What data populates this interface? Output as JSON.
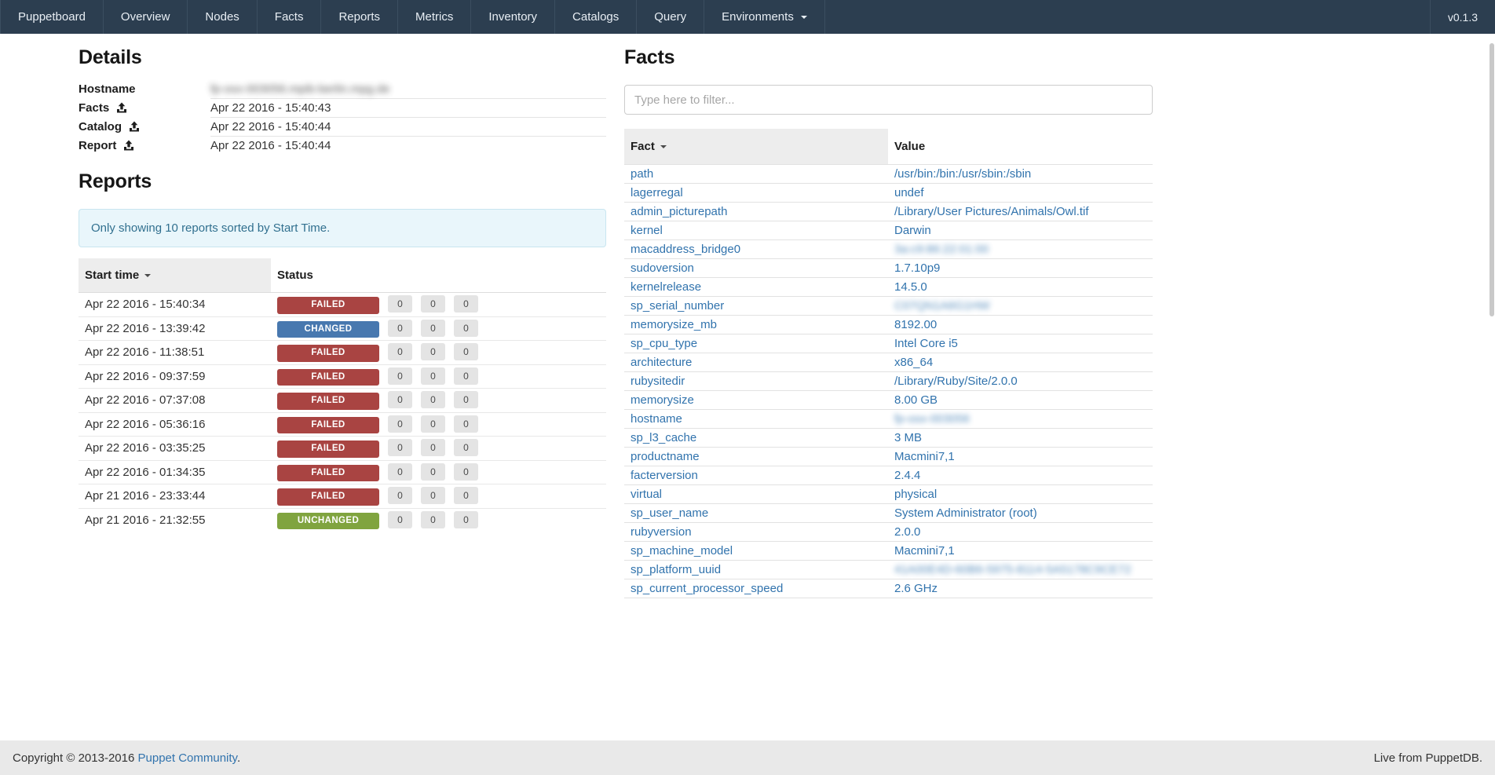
{
  "navbar": {
    "items": [
      {
        "id": "puppetboard",
        "label": "Puppetboard",
        "caret": false
      },
      {
        "id": "overview",
        "label": "Overview",
        "caret": false
      },
      {
        "id": "nodes",
        "label": "Nodes",
        "caret": false
      },
      {
        "id": "facts",
        "label": "Facts",
        "caret": false
      },
      {
        "id": "reports",
        "label": "Reports",
        "caret": false
      },
      {
        "id": "metrics",
        "label": "Metrics",
        "caret": false
      },
      {
        "id": "inventory",
        "label": "Inventory",
        "caret": false
      },
      {
        "id": "catalogs",
        "label": "Catalogs",
        "caret": false
      },
      {
        "id": "query",
        "label": "Query",
        "caret": false
      },
      {
        "id": "environments",
        "label": "Environments",
        "caret": true
      }
    ],
    "version": "v0.1.3"
  },
  "details": {
    "title": "Details",
    "rows": [
      {
        "label": "Hostname",
        "upload_icon": false,
        "value": "fp-osx-003056.mpib-berlin.mpg.de",
        "blurred": true
      },
      {
        "label": "Facts",
        "upload_icon": true,
        "value": "Apr 22 2016 - 15:40:43",
        "blurred": false
      },
      {
        "label": "Catalog",
        "upload_icon": true,
        "value": "Apr 22 2016 - 15:40:44",
        "blurred": false
      },
      {
        "label": "Report",
        "upload_icon": true,
        "value": "Apr 22 2016 - 15:40:44",
        "blurred": false
      }
    ]
  },
  "reports": {
    "title": "Reports",
    "notice": "Only showing 10 reports sorted by Start Time.",
    "columns": [
      "Start time",
      "Status"
    ],
    "rows": [
      {
        "start_time": "Apr 22 2016 - 15:40:34",
        "status": "FAILED",
        "counts": [
          0,
          0,
          0
        ]
      },
      {
        "start_time": "Apr 22 2016 - 13:39:42",
        "status": "CHANGED",
        "counts": [
          0,
          0,
          0
        ]
      },
      {
        "start_time": "Apr 22 2016 - 11:38:51",
        "status": "FAILED",
        "counts": [
          0,
          0,
          0
        ]
      },
      {
        "start_time": "Apr 22 2016 - 09:37:59",
        "status": "FAILED",
        "counts": [
          0,
          0,
          0
        ]
      },
      {
        "start_time": "Apr 22 2016 - 07:37:08",
        "status": "FAILED",
        "counts": [
          0,
          0,
          0
        ]
      },
      {
        "start_time": "Apr 22 2016 - 05:36:16",
        "status": "FAILED",
        "counts": [
          0,
          0,
          0
        ]
      },
      {
        "start_time": "Apr 22 2016 - 03:35:25",
        "status": "FAILED",
        "counts": [
          0,
          0,
          0
        ]
      },
      {
        "start_time": "Apr 22 2016 - 01:34:35",
        "status": "FAILED",
        "counts": [
          0,
          0,
          0
        ]
      },
      {
        "start_time": "Apr 21 2016 - 23:33:44",
        "status": "FAILED",
        "counts": [
          0,
          0,
          0
        ]
      },
      {
        "start_time": "Apr 21 2016 - 21:32:55",
        "status": "UNCHANGED",
        "counts": [
          0,
          0,
          0
        ]
      }
    ]
  },
  "facts": {
    "title": "Facts",
    "filter_placeholder": "Type here to filter...",
    "columns": [
      "Fact",
      "Value"
    ],
    "rows": [
      {
        "fact": "path",
        "value": "/usr/bin:/bin:/usr/sbin:/sbin",
        "blurred": false
      },
      {
        "fact": "lagerregal",
        "value": "undef",
        "blurred": false
      },
      {
        "fact": "admin_picturepath",
        "value": "/Library/User Pictures/Animals/Owl.tif",
        "blurred": false
      },
      {
        "fact": "kernel",
        "value": "Darwin",
        "blurred": false
      },
      {
        "fact": "macaddress_bridge0",
        "value": "3a:c9:86:22:01:00",
        "blurred": true
      },
      {
        "fact": "sudoversion",
        "value": "1.7.10p9",
        "blurred": false
      },
      {
        "fact": "kernelrelease",
        "value": "14.5.0",
        "blurred": false
      },
      {
        "fact": "sp_serial_number",
        "value": "C07QN1A6G1HW",
        "blurred": true
      },
      {
        "fact": "memorysize_mb",
        "value": "8192.00",
        "blurred": false
      },
      {
        "fact": "sp_cpu_type",
        "value": "Intel Core i5",
        "blurred": false
      },
      {
        "fact": "architecture",
        "value": "x86_64",
        "blurred": false
      },
      {
        "fact": "rubysitedir",
        "value": "/Library/Ruby/Site/2.0.0",
        "blurred": false
      },
      {
        "fact": "memorysize",
        "value": "8.00 GB",
        "blurred": false
      },
      {
        "fact": "hostname",
        "value": "fp-osx-003056",
        "blurred": true
      },
      {
        "fact": "sp_l3_cache",
        "value": "3 MB",
        "blurred": false
      },
      {
        "fact": "productname",
        "value": "Macmini7,1",
        "blurred": false
      },
      {
        "fact": "facterversion",
        "value": "2.4.4",
        "blurred": false
      },
      {
        "fact": "virtual",
        "value": "physical",
        "blurred": false
      },
      {
        "fact": "sp_user_name",
        "value": "System Administrator (root)",
        "blurred": false
      },
      {
        "fact": "rubyversion",
        "value": "2.0.0",
        "blurred": false
      },
      {
        "fact": "sp_machine_model",
        "value": "Macmini7,1",
        "blurred": false
      },
      {
        "fact": "sp_platform_uuid",
        "value": "41A00E4D-60B6-5975-8114-5A5178C9CE72",
        "blurred": true
      },
      {
        "fact": "sp_current_processor_speed",
        "value": "2.6 GHz",
        "blurred": false
      }
    ]
  },
  "footer": {
    "copyright_prefix": "Copyright © 2013-2016 ",
    "copyright_link": "Puppet Community",
    "copyright_suffix": ".",
    "right_text": "Live from PuppetDB."
  },
  "colors": {
    "navbar_bg": "#2c3e50",
    "failed": "#a94442",
    "changed": "#4878af",
    "unchanged": "#80a43f",
    "link": "#3173ad",
    "notice_text": "#31708f"
  }
}
